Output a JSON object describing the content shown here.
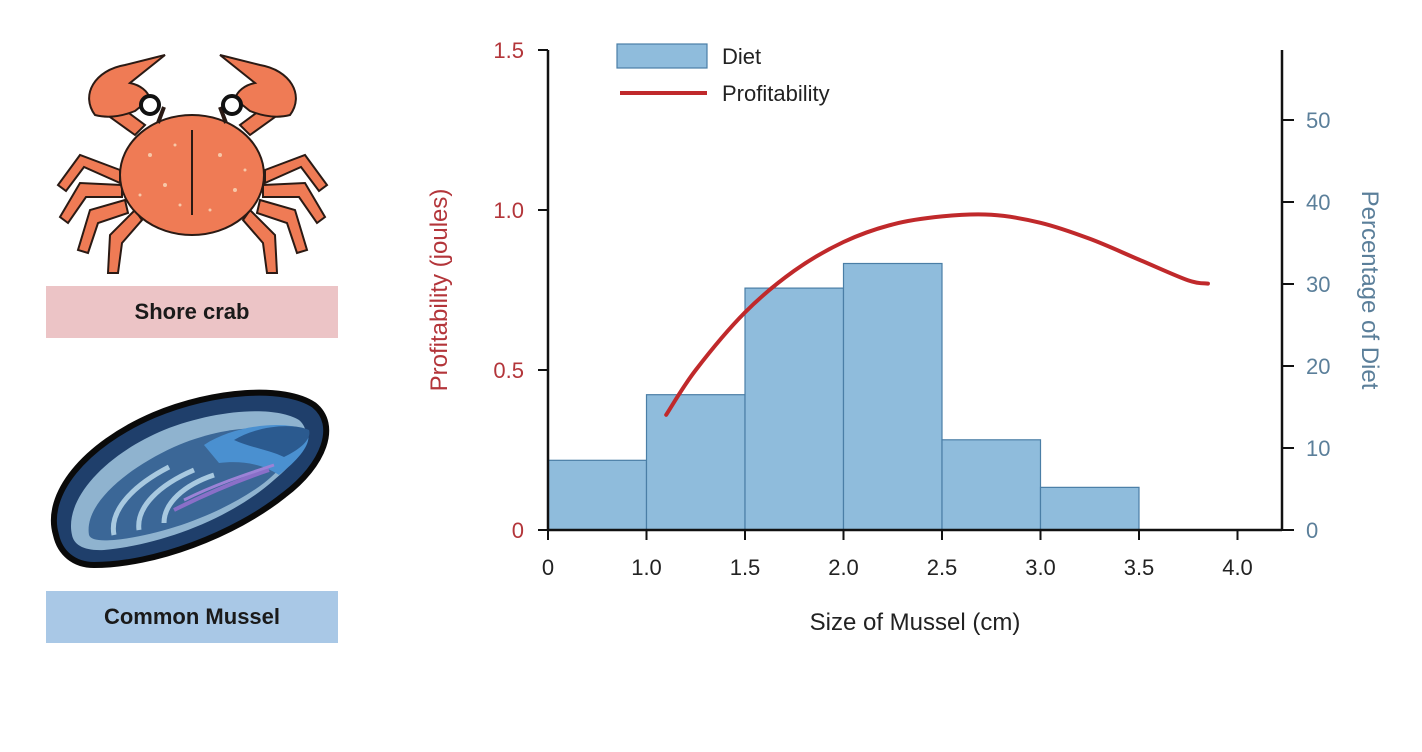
{
  "labels": {
    "crab": "Shore crab",
    "mussel": "Common Mussel"
  },
  "illustrations": {
    "crab": "shore-crab-illustration",
    "mussel": "common-mussel-illustration"
  },
  "colors": {
    "profitability": "#c0292b",
    "diet_fill": "#8fbcdc",
    "diet_stroke": "#4a7ea6",
    "right_axis_text": "#5b7f9a",
    "left_axis_text": "#b3353a"
  },
  "chart_data": {
    "type": "bar",
    "xlabel": "Size of Mussel (cm)",
    "ylabel_left": "Profitability (joules)",
    "ylabel_right": "Percentage of Diet",
    "x_ticks": [
      "0",
      "1.0",
      "1.5",
      "2.0",
      "2.5",
      "3.0",
      "3.5",
      "4.0"
    ],
    "y_left_ticks": [
      {
        "value": 0,
        "label": "0"
      },
      {
        "value": 0.5,
        "label": "0.5"
      },
      {
        "value": 1.0,
        "label": "1.0"
      },
      {
        "value": 1.5,
        "label": "1.5"
      }
    ],
    "y_right_ticks": [
      {
        "value": 0,
        "label": "0"
      },
      {
        "value": 10,
        "label": "10"
      },
      {
        "value": 20,
        "label": "20"
      },
      {
        "value": 30,
        "label": "30"
      },
      {
        "value": 40,
        "label": "40"
      },
      {
        "value": 50,
        "label": "50"
      }
    ],
    "y_left_lim": [
      0,
      1.5
    ],
    "y_right_lim": [
      0,
      58
    ],
    "legend": {
      "position": "top-left",
      "entries": [
        "Diet",
        "Profitability"
      ]
    },
    "grid": false,
    "series": [
      {
        "name": "Diet",
        "type": "bar",
        "axis": "right",
        "bins": [
          {
            "start_tick": 0,
            "end_tick": 1,
            "value": 8.5
          },
          {
            "start_tick": 1,
            "end_tick": 2,
            "value": 16.5
          },
          {
            "start_tick": 2,
            "end_tick": 3,
            "value": 29.5
          },
          {
            "start_tick": 3,
            "end_tick": 4,
            "value": 32.5
          },
          {
            "start_tick": 4,
            "end_tick": 5,
            "value": 11
          },
          {
            "start_tick": 5,
            "end_tick": 6,
            "value": 5.2
          }
        ]
      },
      {
        "name": "Profitability",
        "type": "line",
        "axis": "left",
        "points": [
          {
            "x": 1.1,
            "y": 0.36
          },
          {
            "x": 1.25,
            "y": 0.5
          },
          {
            "x": 1.5,
            "y": 0.68
          },
          {
            "x": 1.75,
            "y": 0.81
          },
          {
            "x": 2.0,
            "y": 0.9
          },
          {
            "x": 2.25,
            "y": 0.955
          },
          {
            "x": 2.5,
            "y": 0.98
          },
          {
            "x": 2.75,
            "y": 0.985
          },
          {
            "x": 3.0,
            "y": 0.96
          },
          {
            "x": 3.25,
            "y": 0.91
          },
          {
            "x": 3.5,
            "y": 0.845
          },
          {
            "x": 3.75,
            "y": 0.78
          },
          {
            "x": 3.85,
            "y": 0.77
          }
        ]
      }
    ]
  }
}
